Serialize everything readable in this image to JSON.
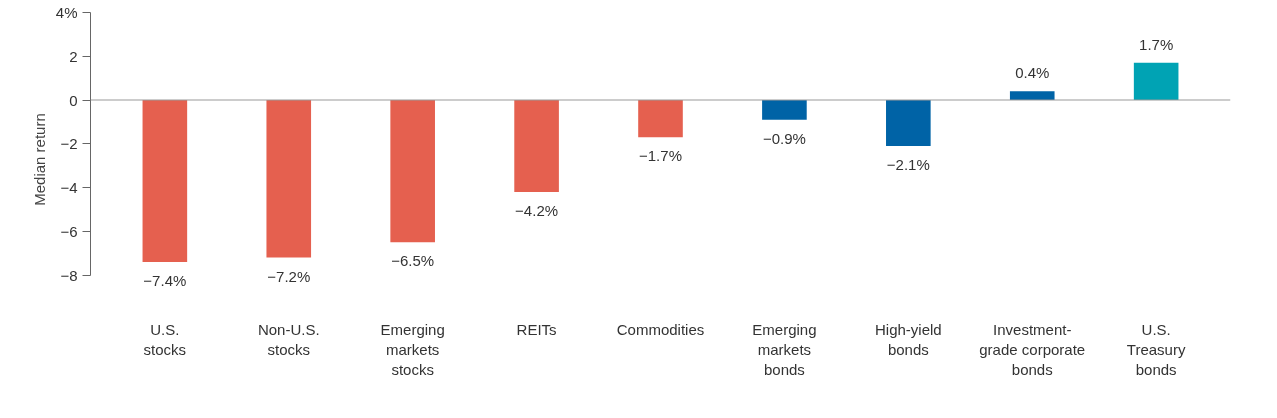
{
  "chart_data": {
    "type": "bar",
    "ylabel": "Median return",
    "categories": [
      "U.S.\nstocks",
      "Non-U.S.\nstocks",
      "Emerging\nmarkets\nstocks",
      "REITs",
      "Commodities",
      "Emerging\nmarkets\nbonds",
      "High-yield\nbonds",
      "Investment-\ngrade corporate\nbonds",
      "U.S.\nTreasury\nbonds"
    ],
    "values": [
      -7.4,
      -7.2,
      -6.5,
      -4.2,
      -1.7,
      -0.9,
      -2.1,
      0.4,
      1.7
    ],
    "colors": [
      "#e5604f",
      "#e5604f",
      "#e5604f",
      "#e5604f",
      "#e5604f",
      "#0063a6",
      "#0063a6",
      "#0063a6",
      "#00a3b4"
    ],
    "value_labels": [
      "−7.4%",
      "−7.2%",
      "−6.5%",
      "−4.2%",
      "−1.7%",
      "−0.9%",
      "−2.1%",
      "0.4%",
      "1.7%"
    ],
    "ylim": [
      -8,
      4
    ],
    "yticks": [
      {
        "value": -8,
        "label": "−8"
      },
      {
        "value": -6,
        "label": "−6"
      },
      {
        "value": -4,
        "label": "−4"
      },
      {
        "value": -2,
        "label": "−2"
      },
      0,
      2,
      {
        "value": 4,
        "label": "4%"
      }
    ],
    "ref_lines": [
      {
        "axis": "y",
        "value": 0,
        "color": "#999999"
      }
    ],
    "grid": false
  }
}
